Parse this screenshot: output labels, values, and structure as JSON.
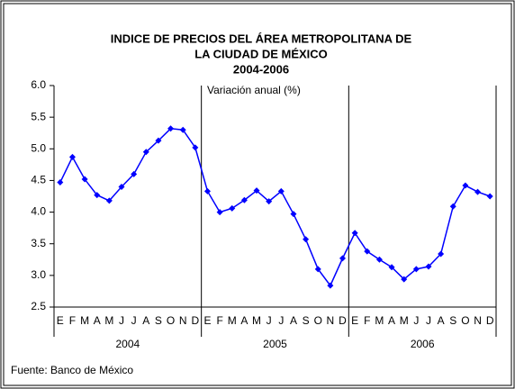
{
  "chart_data": {
    "type": "line",
    "title_lines": [
      "INDICE DE PRECIOS DEL ÁREA METROPOLITANA DE",
      "LA CIUDAD DE MÉXICO"
    ],
    "subtitle": "2004-2006",
    "annotation": "Variación anual (%)",
    "source": "Fuente: Banco de México",
    "categories": [
      "E",
      "F",
      "M",
      "A",
      "M",
      "J",
      "J",
      "A",
      "S",
      "O",
      "N",
      "D",
      "E",
      "F",
      "M",
      "A",
      "M",
      "J",
      "J",
      "A",
      "S",
      "O",
      "N",
      "D",
      "E",
      "F",
      "M",
      "A",
      "M",
      "J",
      "J",
      "A",
      "S",
      "O",
      "N",
      "D"
    ],
    "groups": [
      "2004",
      "2005",
      "2006"
    ],
    "series": [
      {
        "name": "Variación anual",
        "color": "#0000ff",
        "values": [
          4.47,
          4.87,
          4.52,
          4.27,
          4.18,
          4.4,
          4.6,
          4.95,
          5.13,
          5.32,
          5.3,
          5.02,
          4.33,
          4.0,
          4.06,
          4.19,
          4.34,
          4.17,
          4.33,
          3.97,
          3.57,
          3.1,
          2.84,
          3.27,
          3.67,
          3.38,
          3.25,
          3.13,
          2.94,
          3.1,
          3.14,
          3.34,
          4.09,
          4.42,
          4.32,
          4.25
        ]
      }
    ],
    "ylim": [
      2.5,
      6.0
    ],
    "yticks": [
      2.5,
      {
        "value": 3,
        "label": "3.0"
      },
      3.5,
      {
        "value": 4,
        "label": "4.0"
      },
      4.5,
      {
        "value": 5,
        "label": "5.0"
      },
      5.5,
      {
        "value": 6,
        "label": "6.0"
      }
    ]
  }
}
